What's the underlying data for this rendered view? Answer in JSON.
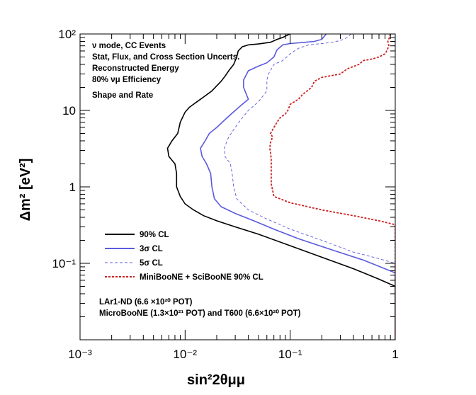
{
  "chart_data": {
    "type": "line",
    "xlabel": "sin²2θμμ",
    "ylabel": "Δm² [eV²]",
    "x_scale": "log",
    "y_scale": "log",
    "xlim": [
      0.001,
      1
    ],
    "ylim": [
      0.01,
      100
    ],
    "grid": false,
    "x_ticks": [
      0.001,
      0.01,
      0.1,
      1
    ],
    "x_tick_labels": [
      "10⁻³",
      "10⁻²",
      "10⁻¹",
      "1"
    ],
    "y_ticks": [
      0.1,
      1,
      10,
      100
    ],
    "y_tick_labels": [
      "10⁻¹",
      "1",
      "10",
      "10²"
    ],
    "annotations": [
      "ν mode, CC Events",
      "Stat, Flux, and Cross Section Uncerts.",
      "Reconstructed Energy",
      "80% νμ Efficiency",
      "Shape and Rate",
      "LAr1-ND (6.6 ×10²⁰ POT)",
      "MicroBooNE (1.3×10²¹ POT) and T600 (6.6×10²⁰ POT)"
    ],
    "legend_position": "bottom-left",
    "series": [
      {
        "name": "90% CL",
        "color": "#000000",
        "style": "solid",
        "points": [
          [
            0.099,
            100
          ],
          [
            0.085,
            90
          ],
          [
            0.075,
            85
          ],
          [
            0.065,
            78
          ],
          [
            0.05,
            74
          ],
          [
            0.04,
            72
          ],
          [
            0.035,
            68
          ],
          [
            0.032,
            60
          ],
          [
            0.031,
            50
          ],
          [
            0.029,
            40
          ],
          [
            0.026,
            33
          ],
          [
            0.024,
            28
          ],
          [
            0.022,
            24
          ],
          [
            0.02,
            21
          ],
          [
            0.018,
            18
          ],
          [
            0.015,
            15
          ],
          [
            0.013,
            13
          ],
          [
            0.012,
            12
          ],
          [
            0.011,
            11
          ],
          [
            0.01,
            9.5
          ],
          [
            0.009,
            7
          ],
          [
            0.0085,
            5
          ],
          [
            0.0075,
            4
          ],
          [
            0.0068,
            3.2
          ],
          [
            0.007,
            2.5
          ],
          [
            0.008,
            2
          ],
          [
            0.0083,
            1.5
          ],
          [
            0.0083,
            1
          ],
          [
            0.009,
            0.75
          ],
          [
            0.01,
            0.6
          ],
          [
            0.012,
            0.5
          ],
          [
            0.015,
            0.42
          ],
          [
            0.02,
            0.36
          ],
          [
            0.03,
            0.3
          ],
          [
            0.05,
            0.24
          ],
          [
            0.1,
            0.17
          ],
          [
            0.2,
            0.12
          ],
          [
            0.4,
            0.085
          ],
          [
            0.7,
            0.062
          ],
          [
            1,
            0.05
          ],
          [
            1,
            0.01
          ]
        ]
      },
      {
        "name": "3σ CL",
        "color": "#5a5adc",
        "style": "solid",
        "points": [
          [
            0.22,
            100
          ],
          [
            0.2,
            85
          ],
          [
            0.17,
            80
          ],
          [
            0.14,
            78
          ],
          [
            0.1,
            75
          ],
          [
            0.085,
            72
          ],
          [
            0.075,
            62
          ],
          [
            0.07,
            50
          ],
          [
            0.06,
            42
          ],
          [
            0.05,
            38
          ],
          [
            0.04,
            33
          ],
          [
            0.036,
            25
          ],
          [
            0.036,
            20
          ],
          [
            0.04,
            14
          ],
          [
            0.035,
            12
          ],
          [
            0.03,
            10
          ],
          [
            0.025,
            8
          ],
          [
            0.02,
            6
          ],
          [
            0.017,
            5
          ],
          [
            0.0155,
            4
          ],
          [
            0.014,
            3.2
          ],
          [
            0.0145,
            2.5
          ],
          [
            0.016,
            2
          ],
          [
            0.0175,
            1.5
          ],
          [
            0.018,
            1
          ],
          [
            0.019,
            0.7
          ],
          [
            0.022,
            0.55
          ],
          [
            0.03,
            0.45
          ],
          [
            0.045,
            0.36
          ],
          [
            0.07,
            0.28
          ],
          [
            0.12,
            0.21
          ],
          [
            0.25,
            0.15
          ],
          [
            0.5,
            0.11
          ],
          [
            1,
            0.075
          ],
          [
            1,
            0.01
          ]
        ]
      },
      {
        "name": "5σ CL",
        "color": "#5a5adc",
        "style": "dashed",
        "points": [
          [
            0.38,
            100
          ],
          [
            0.35,
            90
          ],
          [
            0.3,
            82
          ],
          [
            0.25,
            78
          ],
          [
            0.2,
            75
          ],
          [
            0.15,
            72
          ],
          [
            0.12,
            65
          ],
          [
            0.1,
            55
          ],
          [
            0.085,
            45
          ],
          [
            0.07,
            40
          ],
          [
            0.062,
            30
          ],
          [
            0.06,
            25
          ],
          [
            0.06,
            18
          ],
          [
            0.05,
            13
          ],
          [
            0.04,
            10
          ],
          [
            0.035,
            8
          ],
          [
            0.03,
            6
          ],
          [
            0.026,
            4.5
          ],
          [
            0.0235,
            3.2
          ],
          [
            0.024,
            2.5
          ],
          [
            0.027,
            2
          ],
          [
            0.028,
            1.5
          ],
          [
            0.029,
            1
          ],
          [
            0.031,
            0.7
          ],
          [
            0.04,
            0.5
          ],
          [
            0.06,
            0.38
          ],
          [
            0.1,
            0.28
          ],
          [
            0.2,
            0.2
          ],
          [
            0.4,
            0.14
          ],
          [
            0.7,
            0.115
          ],
          [
            1,
            0.1
          ],
          [
            1,
            0.01
          ]
        ]
      },
      {
        "name": "MiniBooNE + SciBooNE 90% CL",
        "color": "#cc2222",
        "style": "dotted",
        "points": [
          [
            0.9,
            100
          ],
          [
            0.88,
            90
          ],
          [
            0.85,
            80
          ],
          [
            0.87,
            70
          ],
          [
            0.83,
            60
          ],
          [
            0.8,
            55
          ],
          [
            0.7,
            50
          ],
          [
            0.6,
            47
          ],
          [
            0.5,
            45
          ],
          [
            0.45,
            40
          ],
          [
            0.35,
            35
          ],
          [
            0.3,
            30
          ],
          [
            0.2,
            27
          ],
          [
            0.17,
            24
          ],
          [
            0.16,
            20
          ],
          [
            0.13,
            16
          ],
          [
            0.12,
            14
          ],
          [
            0.1,
            12
          ],
          [
            0.095,
            10
          ],
          [
            0.09,
            9
          ],
          [
            0.08,
            8
          ],
          [
            0.075,
            7
          ],
          [
            0.07,
            6
          ],
          [
            0.065,
            5
          ],
          [
            0.068,
            4.5
          ],
          [
            0.065,
            3.8
          ],
          [
            0.064,
            3.2
          ],
          [
            0.065,
            2.8
          ],
          [
            0.066,
            2.3
          ],
          [
            0.066,
            2
          ],
          [
            0.066,
            1.5
          ],
          [
            0.066,
            1.3
          ],
          [
            0.066,
            1.2
          ],
          [
            0.066,
            1.1
          ],
          [
            0.07,
            0.75
          ],
          [
            0.1,
            0.62
          ],
          [
            0.2,
            0.5
          ],
          [
            0.4,
            0.42
          ],
          [
            0.7,
            0.36
          ],
          [
            1,
            0.32
          ],
          [
            1,
            0.01
          ]
        ]
      }
    ]
  }
}
